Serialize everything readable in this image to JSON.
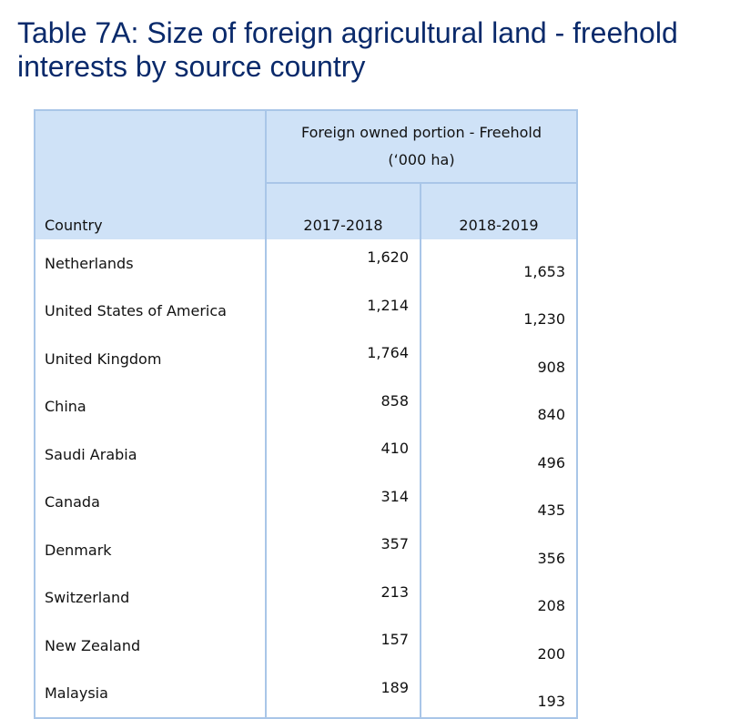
{
  "title_line1": "Table 7A: Size of foreign agricultural land - freehold",
  "title_line2": "interests by source country",
  "table": {
    "country_header": "Country",
    "group_header_line1": "Foreign owned portion - Freehold",
    "group_header_line2": "(‘000 ha)",
    "year_headers": [
      "2017-2018",
      "2018-2019"
    ],
    "rows": [
      {
        "country": "Netherlands",
        "y2017_2018": "1,620",
        "y2018_2019": "1,653"
      },
      {
        "country": "United States of America",
        "y2017_2018": "1,214",
        "y2018_2019": "1,230"
      },
      {
        "country": "United Kingdom",
        "y2017_2018": "1,764",
        "y2018_2019": "908"
      },
      {
        "country": "China",
        "y2017_2018": "858",
        "y2018_2019": "840"
      },
      {
        "country": "Saudi Arabia",
        "y2017_2018": "410",
        "y2018_2019": "496"
      },
      {
        "country": "Canada",
        "y2017_2018": "314",
        "y2018_2019": "435"
      },
      {
        "country": "Denmark",
        "y2017_2018": "357",
        "y2018_2019": "356"
      },
      {
        "country": "Switzerland",
        "y2017_2018": "213",
        "y2018_2019": "208"
      },
      {
        "country": "New Zealand",
        "y2017_2018": "157",
        "y2018_2019": "200"
      },
      {
        "country": "Malaysia",
        "y2017_2018": "189",
        "y2018_2019": "193"
      }
    ]
  },
  "colors": {
    "title": "#0a2a6b",
    "header_fill": "#cfe2f7",
    "border": "#a9c6e8"
  }
}
